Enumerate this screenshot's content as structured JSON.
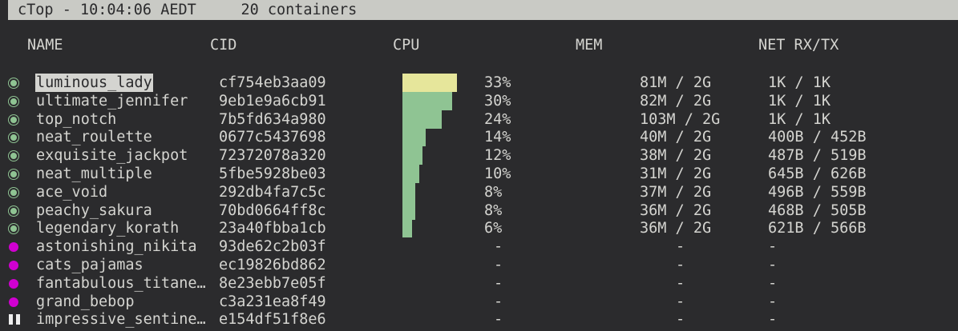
{
  "title": "cTop - 10:04:06 AEDT     20 containers",
  "headers": {
    "name": "NAME",
    "cid": "CID",
    "cpu": "CPU",
    "mem": "MEM",
    "net": "NET RX/TX"
  },
  "colors": {
    "running": "#8fc493",
    "stopped": "#d000d0",
    "cpu_bar": "#8fc493",
    "cpu_bar_top": "#e6e69b"
  },
  "containers": [
    {
      "state": "running",
      "name": "luminous_lady",
      "cid": "cf754eb3aa09",
      "cpu": "33%",
      "cpu_pct": 33,
      "mem": "81M / 2G",
      "net": "1K / 1K",
      "selected": true
    },
    {
      "state": "running",
      "name": "ultimate_jennifer",
      "cid": "9eb1e9a6cb91",
      "cpu": "30%",
      "cpu_pct": 30,
      "mem": "82M / 2G",
      "net": "1K / 1K"
    },
    {
      "state": "running",
      "name": "top_notch",
      "cid": "7b5fd634a980",
      "cpu": "24%",
      "cpu_pct": 24,
      "mem": "103M / 2G",
      "net": "1K / 1K"
    },
    {
      "state": "running",
      "name": "neat_roulette",
      "cid": "0677c5437698",
      "cpu": "14%",
      "cpu_pct": 14,
      "mem": "40M / 2G",
      "net": "400B / 452B"
    },
    {
      "state": "running",
      "name": "exquisite_jackpot",
      "cid": "72372078a320",
      "cpu": "12%",
      "cpu_pct": 12,
      "mem": "38M / 2G",
      "net": "487B / 519B"
    },
    {
      "state": "running",
      "name": "neat_multiple",
      "cid": "5fbe5928be03",
      "cpu": "10%",
      "cpu_pct": 10,
      "mem": "31M / 2G",
      "net": "645B / 626B"
    },
    {
      "state": "running",
      "name": "ace_void",
      "cid": "292db4fa7c5c",
      "cpu": "8%",
      "cpu_pct": 8,
      "mem": "37M / 2G",
      "net": "496B / 559B"
    },
    {
      "state": "running",
      "name": "peachy_sakura",
      "cid": "70bd0664ff8c",
      "cpu": "8%",
      "cpu_pct": 8,
      "mem": "36M / 2G",
      "net": "468B / 505B"
    },
    {
      "state": "running",
      "name": "legendary_korath",
      "cid": "23a40fbba1cb",
      "cpu": "6%",
      "cpu_pct": 6,
      "mem": "36M / 2G",
      "net": "621B / 566B"
    },
    {
      "state": "stopped",
      "name": "astonishing_nikita",
      "cid": "93de62c2b03f",
      "cpu": "-",
      "mem": "-",
      "net": "-"
    },
    {
      "state": "stopped",
      "name": "cats_pajamas",
      "cid": "ec19826bd862",
      "cpu": "-",
      "mem": "-",
      "net": "-"
    },
    {
      "state": "stopped",
      "name": "fantabulous_titane…",
      "cid": "8e23ebb7e05f",
      "cpu": "-",
      "mem": "-",
      "net": "-"
    },
    {
      "state": "stopped",
      "name": "grand_bebop",
      "cid": "c3a231ea8f49",
      "cpu": "-",
      "mem": "-",
      "net": "-"
    },
    {
      "state": "paused",
      "name": "impressive_sentine…",
      "cid": "e154df51f8e6",
      "cpu": "-",
      "mem": "-",
      "net": "-"
    }
  ]
}
